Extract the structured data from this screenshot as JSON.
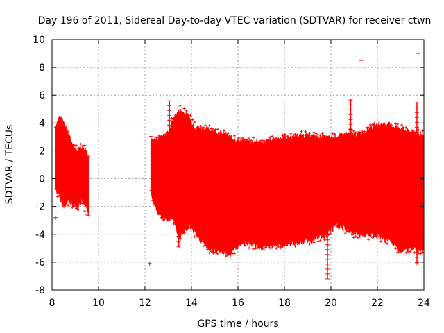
{
  "chart_data": {
    "type": "scatter",
    "title": "Day 196 of 2011, Sidereal Day-to-day VTEC variation (SDTVAR) for receiver ctwn",
    "xlabel": "GPS time / hours",
    "ylabel": "SDTVAR / TECUs",
    "xlim": [
      8,
      24
    ],
    "ylim": [
      -8,
      10
    ],
    "xticks": [
      8,
      10,
      12,
      14,
      16,
      18,
      20,
      22,
      24
    ],
    "yticks": [
      -8,
      -6,
      -4,
      -2,
      0,
      2,
      4,
      6,
      8,
      10
    ],
    "grid": true,
    "series_color": "#ff0000",
    "envelope_segments": [
      {
        "name": "segment-1",
        "upper": [
          [
            8.15,
            3.7
          ],
          [
            8.3,
            4.4
          ],
          [
            8.5,
            4.1
          ],
          [
            8.7,
            3.2
          ],
          [
            8.9,
            2.3
          ],
          [
            9.1,
            2.0
          ],
          [
            9.3,
            2.3
          ],
          [
            9.45,
            2.1
          ],
          [
            9.6,
            1.4
          ]
        ],
        "lower": [
          [
            8.15,
            -0.7
          ],
          [
            8.3,
            -1.2
          ],
          [
            8.5,
            -1.9
          ],
          [
            8.7,
            -1.6
          ],
          [
            8.9,
            -1.8
          ],
          [
            9.1,
            -2.0
          ],
          [
            9.3,
            -1.5
          ],
          [
            9.45,
            -2.2
          ],
          [
            9.6,
            -2.4
          ]
        ]
      },
      {
        "name": "segment-2",
        "upper": [
          [
            12.25,
            2.7
          ],
          [
            12.6,
            2.9
          ],
          [
            13.0,
            3.2
          ],
          [
            13.2,
            4.3
          ],
          [
            13.5,
            4.9
          ],
          [
            13.8,
            4.6
          ],
          [
            14.2,
            3.6
          ],
          [
            14.8,
            3.5
          ],
          [
            15.5,
            3.1
          ],
          [
            16.0,
            2.7
          ],
          [
            17.0,
            2.6
          ],
          [
            18.0,
            2.9
          ],
          [
            19.0,
            3.1
          ],
          [
            20.0,
            2.9
          ],
          [
            20.7,
            3.2
          ],
          [
            21.2,
            3.2
          ],
          [
            21.8,
            3.7
          ],
          [
            22.3,
            3.9
          ],
          [
            22.8,
            3.7
          ],
          [
            23.3,
            3.4
          ],
          [
            23.7,
            3.2
          ],
          [
            24.0,
            3.1
          ]
        ],
        "lower": [
          [
            12.25,
            -1.0
          ],
          [
            12.5,
            -2.3
          ],
          [
            12.8,
            -2.9
          ],
          [
            13.2,
            -2.8
          ],
          [
            13.5,
            -4.3
          ],
          [
            13.9,
            -3.3
          ],
          [
            14.3,
            -4.2
          ],
          [
            14.8,
            -5.1
          ],
          [
            15.2,
            -5.2
          ],
          [
            15.7,
            -5.4
          ],
          [
            16.2,
            -4.5
          ],
          [
            17.0,
            -4.9
          ],
          [
            18.0,
            -4.7
          ],
          [
            19.0,
            -4.4
          ],
          [
            19.7,
            -4.1
          ],
          [
            20.2,
            -3.3
          ],
          [
            20.5,
            -3.5
          ],
          [
            21.0,
            -3.9
          ],
          [
            21.5,
            -4.0
          ],
          [
            22.0,
            -4.1
          ],
          [
            22.5,
            -4.4
          ],
          [
            23.0,
            -5.2
          ],
          [
            23.5,
            -5.0
          ],
          [
            24.0,
            -5.1
          ]
        ]
      }
    ],
    "spikes": [
      {
        "x": 13.05,
        "y_low": 0,
        "y_high": 5.6
      },
      {
        "x": 13.45,
        "y_low": -4.9,
        "y_high": 1.0
      },
      {
        "x": 19.85,
        "y_low": -7.2,
        "y_high": -3.0
      },
      {
        "x": 20.85,
        "y_low": 2.5,
        "y_high": 5.7
      },
      {
        "x": 23.7,
        "y_low": 3.0,
        "y_high": 5.5
      },
      {
        "x": 23.7,
        "y_low": -6.0,
        "y_high": -4.5
      }
    ],
    "outliers": [
      {
        "x": 8.15,
        "y": -2.8
      },
      {
        "x": 12.2,
        "y": -6.1
      },
      {
        "x": 21.3,
        "y": 8.5
      },
      {
        "x": 23.75,
        "y": 9.0
      },
      {
        "x": 23.7,
        "y": -6.05
      }
    ]
  }
}
